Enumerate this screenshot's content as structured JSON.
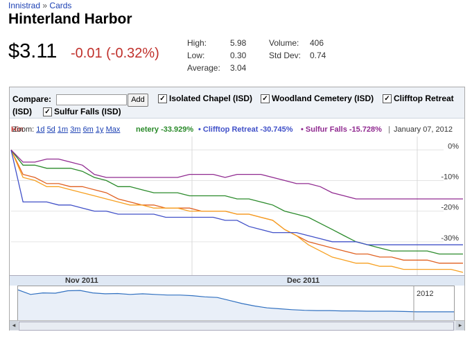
{
  "breadcrumb": {
    "set": "Innistrad",
    "sep": "»",
    "section": "Cards"
  },
  "card": {
    "name": "Hinterland Harbor",
    "price": "$3.11",
    "change": "-0.01 (-0.32%)"
  },
  "stats": {
    "high_label": "High:",
    "high": "5.98",
    "low_label": "Low:",
    "low": "0.30",
    "avg_label": "Average:",
    "avg": "3.04",
    "vol_label": "Volume:",
    "vol": "406",
    "std_label": "Std Dev:",
    "std": "0.74"
  },
  "compare": {
    "label": "Compare:",
    "input_value": "",
    "add_label": "Add",
    "items": [
      {
        "label": "Isolated Chapel (ISD)",
        "checked": true
      },
      {
        "label": "Woodland Cemetery (ISD)",
        "checked": true
      },
      {
        "label": "Clifftop Retreat",
        "checked": true
      },
      {
        "label": "(ISD)",
        "checked": false
      },
      {
        "label": "Sulfur Falls (ISD)",
        "checked": true
      }
    ]
  },
  "legend": {
    "zoom_label": "Zoom:",
    "zoom_options": [
      "1d",
      "5d",
      "1m",
      "3m",
      "6m",
      "1y",
      "Max"
    ],
    "wc_text": "netery -33.929%",
    "ct_text": "• Clifftop Retreat -30.745%",
    "sf_text": "• Sulfur Falls -15.728%",
    "date": "January 07, 2012",
    "sep": "|",
    "hh_label_partial": "Hin"
  },
  "chart_data": {
    "type": "line",
    "title": "",
    "xlabel": "",
    "ylabel": "",
    "ylim": [
      -40,
      3
    ],
    "yticks": [
      "0%",
      "-10%",
      "-20%",
      "-30%"
    ],
    "ytick_values": [
      0,
      -10,
      -20,
      -30
    ],
    "xticks": [
      "Nov 2011",
      "Dec 2011"
    ],
    "grid": true,
    "series": [
      {
        "name": "Hinterland Harbor",
        "color": "#e06020",
        "values": [
          0,
          -8,
          -9,
          -11,
          -11,
          -12,
          -12,
          -13,
          -14,
          -16,
          -17,
          -18,
          -18,
          -19,
          -19,
          -19,
          -20,
          -20,
          -20,
          -21,
          -21,
          -22,
          -23,
          -26,
          -28,
          -30,
          -31,
          -32,
          -33,
          -34,
          -34,
          -35,
          -35,
          -36,
          -36,
          -36,
          -37,
          -37,
          -37
        ]
      },
      {
        "name": "Isolated Chapel",
        "color": "#f7a020",
        "values": [
          0,
          -9,
          -10,
          -12,
          -12,
          -13,
          -14,
          -15,
          -16,
          -17,
          -18,
          -18,
          -19,
          -19,
          -19,
          -20,
          -20,
          -20,
          -20,
          -21,
          -21,
          -22,
          -23,
          -26,
          -28,
          -31,
          -33,
          -35,
          -36,
          -37,
          -37,
          -38,
          -38,
          -39,
          -39,
          -39,
          -39,
          -39,
          -40
        ]
      },
      {
        "name": "Woodland Cemetery",
        "color": "#2a8a2a",
        "values": [
          0,
          -5,
          -5,
          -6,
          -6,
          -6,
          -7,
          -9,
          -10,
          -12,
          -12,
          -13,
          -14,
          -14,
          -14,
          -15,
          -15,
          -15,
          -15,
          -16,
          -16,
          -17,
          -18,
          -20,
          -21,
          -22,
          -24,
          -26,
          -28,
          -30,
          -31,
          -32,
          -33,
          -33,
          -33,
          -33,
          -34,
          -34,
          -34
        ]
      },
      {
        "name": "Clifftop Retreat",
        "color": "#4050c8",
        "values": [
          0,
          -17,
          -17,
          -17,
          -18,
          -18,
          -19,
          -20,
          -20,
          -21,
          -21,
          -21,
          -21,
          -22,
          -22,
          -22,
          -22,
          -22,
          -23,
          -23,
          -25,
          -26,
          -27,
          -27,
          -27,
          -28,
          -29,
          -30,
          -30,
          -30,
          -31,
          -31,
          -31,
          -31,
          -31,
          -31,
          -31,
          -31,
          -31
        ]
      },
      {
        "name": "Sulfur Falls",
        "color": "#902a90",
        "values": [
          0,
          -4,
          -4,
          -3,
          -3,
          -4,
          -5,
          -8,
          -9,
          -9,
          -9,
          -9,
          -9,
          -9,
          -9,
          -8,
          -8,
          -8,
          -9,
          -8,
          -8,
          -8,
          -9,
          -10,
          -11,
          -11,
          -12,
          -14,
          -15,
          -16,
          -16,
          -16,
          -16,
          -16,
          -16,
          -16,
          -16,
          -16,
          -16
        ]
      }
    ],
    "navigator_values": [
      0.95,
      0.8,
      0.85,
      0.84,
      0.92,
      0.93,
      0.85,
      0.82,
      0.83,
      0.8,
      0.82,
      0.8,
      0.78,
      0.78,
      0.76,
      0.72,
      0.7,
      0.6,
      0.5,
      0.42,
      0.36,
      0.33,
      0.3,
      0.28,
      0.27,
      0.27,
      0.26,
      0.26,
      0.25,
      0.25,
      0.25,
      0.24,
      0.23,
      0.23,
      0.23,
      0.23
    ],
    "navigator_label": "2012"
  }
}
